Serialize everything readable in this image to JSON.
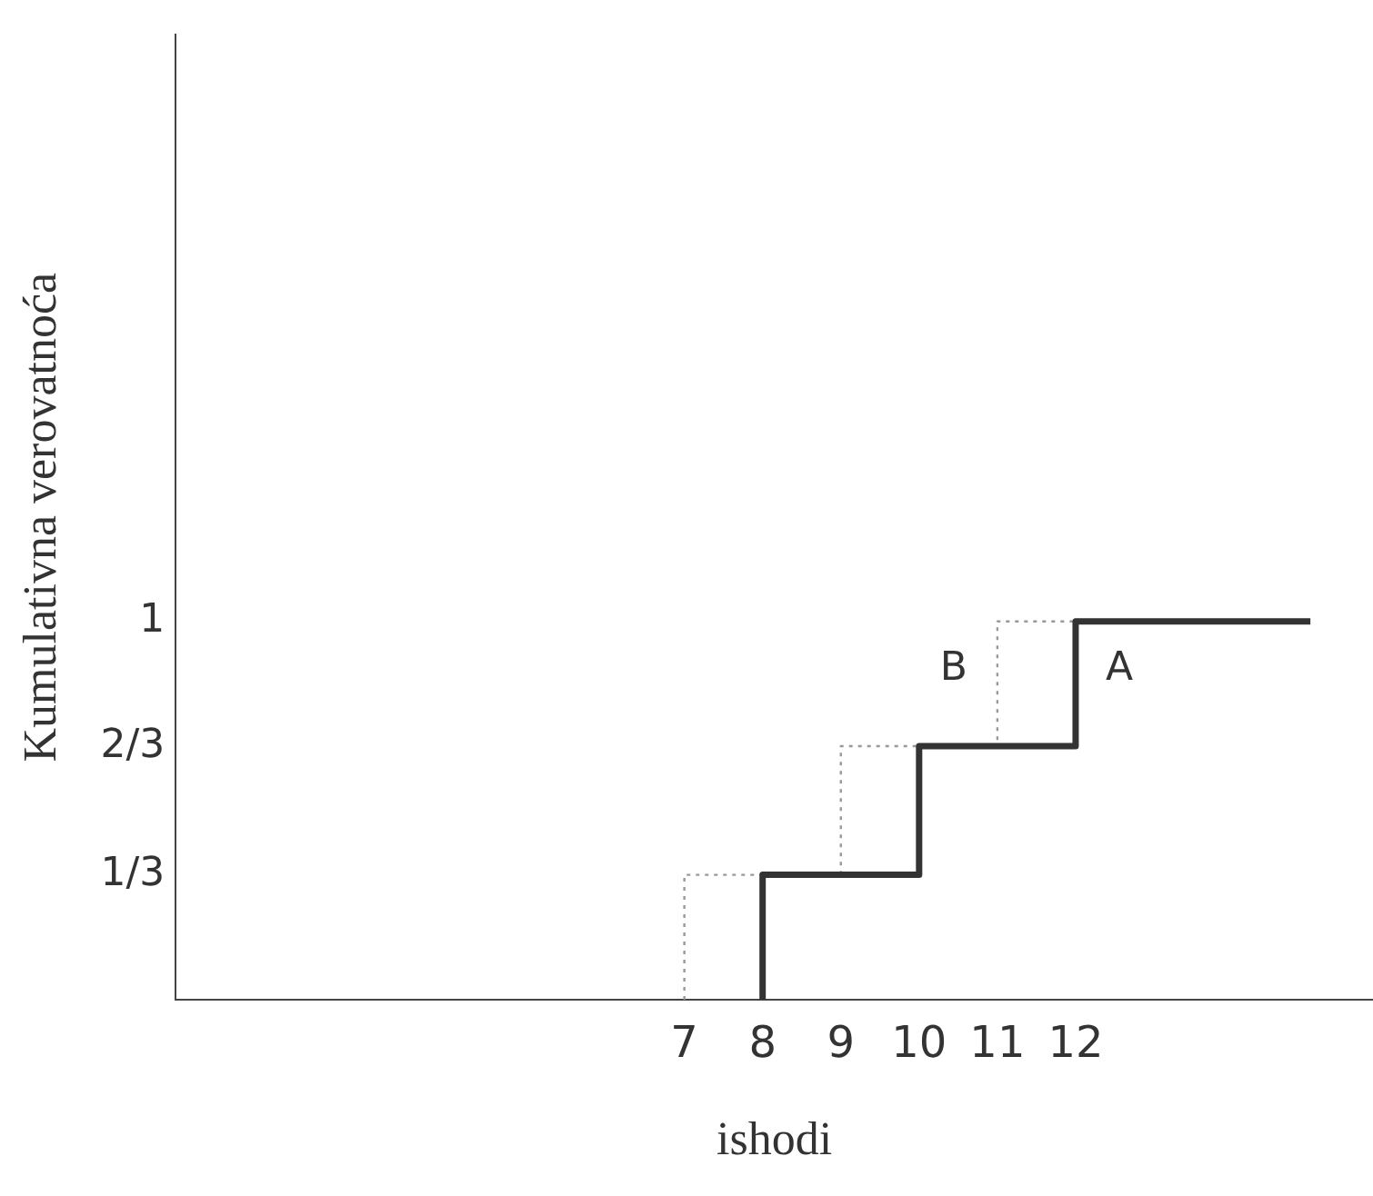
{
  "chart_data": {
    "type": "step",
    "xlabel": "ishodi",
    "ylabel": "Kumulativna verovatnoća",
    "xlim": [
      0.5,
      15.8
    ],
    "xticks": [
      7,
      8,
      9,
      10,
      11,
      12
    ],
    "ylim": [
      0,
      2.55
    ],
    "yticks": [
      {
        "value": 0.33,
        "label": "1/3"
      },
      {
        "value": 0.67,
        "label": "2/3"
      },
      1
    ],
    "series": [
      {
        "name": "A",
        "color": "#333333",
        "line_style": "solid",
        "x": [
          8,
          8,
          10,
          12,
          15
        ],
        "values": [
          0,
          0.33,
          0.67,
          1,
          1
        ]
      },
      {
        "name": "B",
        "color": "#999999",
        "line_style": "dotted",
        "x": [
          7,
          7,
          9,
          11,
          12
        ],
        "values": [
          0,
          0.33,
          0.67,
          1,
          1
        ]
      }
    ],
    "grid": false,
    "legend": false
  }
}
